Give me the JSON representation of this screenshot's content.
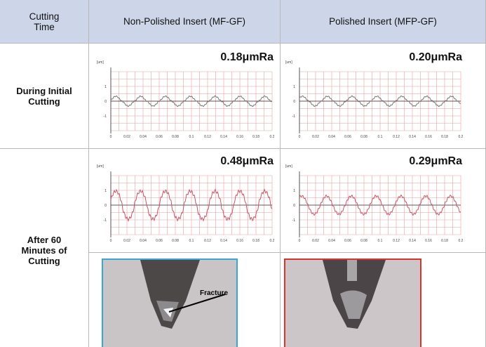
{
  "table": {
    "header": [
      "Cutting Time",
      "Non-Polished Insert (MF-GF)",
      "Polished Insert (MFP-GF)"
    ],
    "rows": [
      {
        "label": "During Initial Cutting",
        "cells": [
          "0.18μmRa",
          "0.20μmRa"
        ]
      },
      {
        "label": "After 60 Minutes of Cutting",
        "cells": [
          "0.48μmRa",
          "0.29μmRa"
        ]
      }
    ],
    "photo_annotation": "Fracture"
  },
  "plot": {
    "unit": "[um]",
    "yticks": [
      "1",
      "0",
      "-1"
    ],
    "xticks": [
      "0",
      "0.02",
      "0.04",
      "0.06",
      "0.08",
      "0.1",
      "0.12",
      "0.14",
      "0.16",
      "0.18",
      "0.2"
    ]
  }
}
